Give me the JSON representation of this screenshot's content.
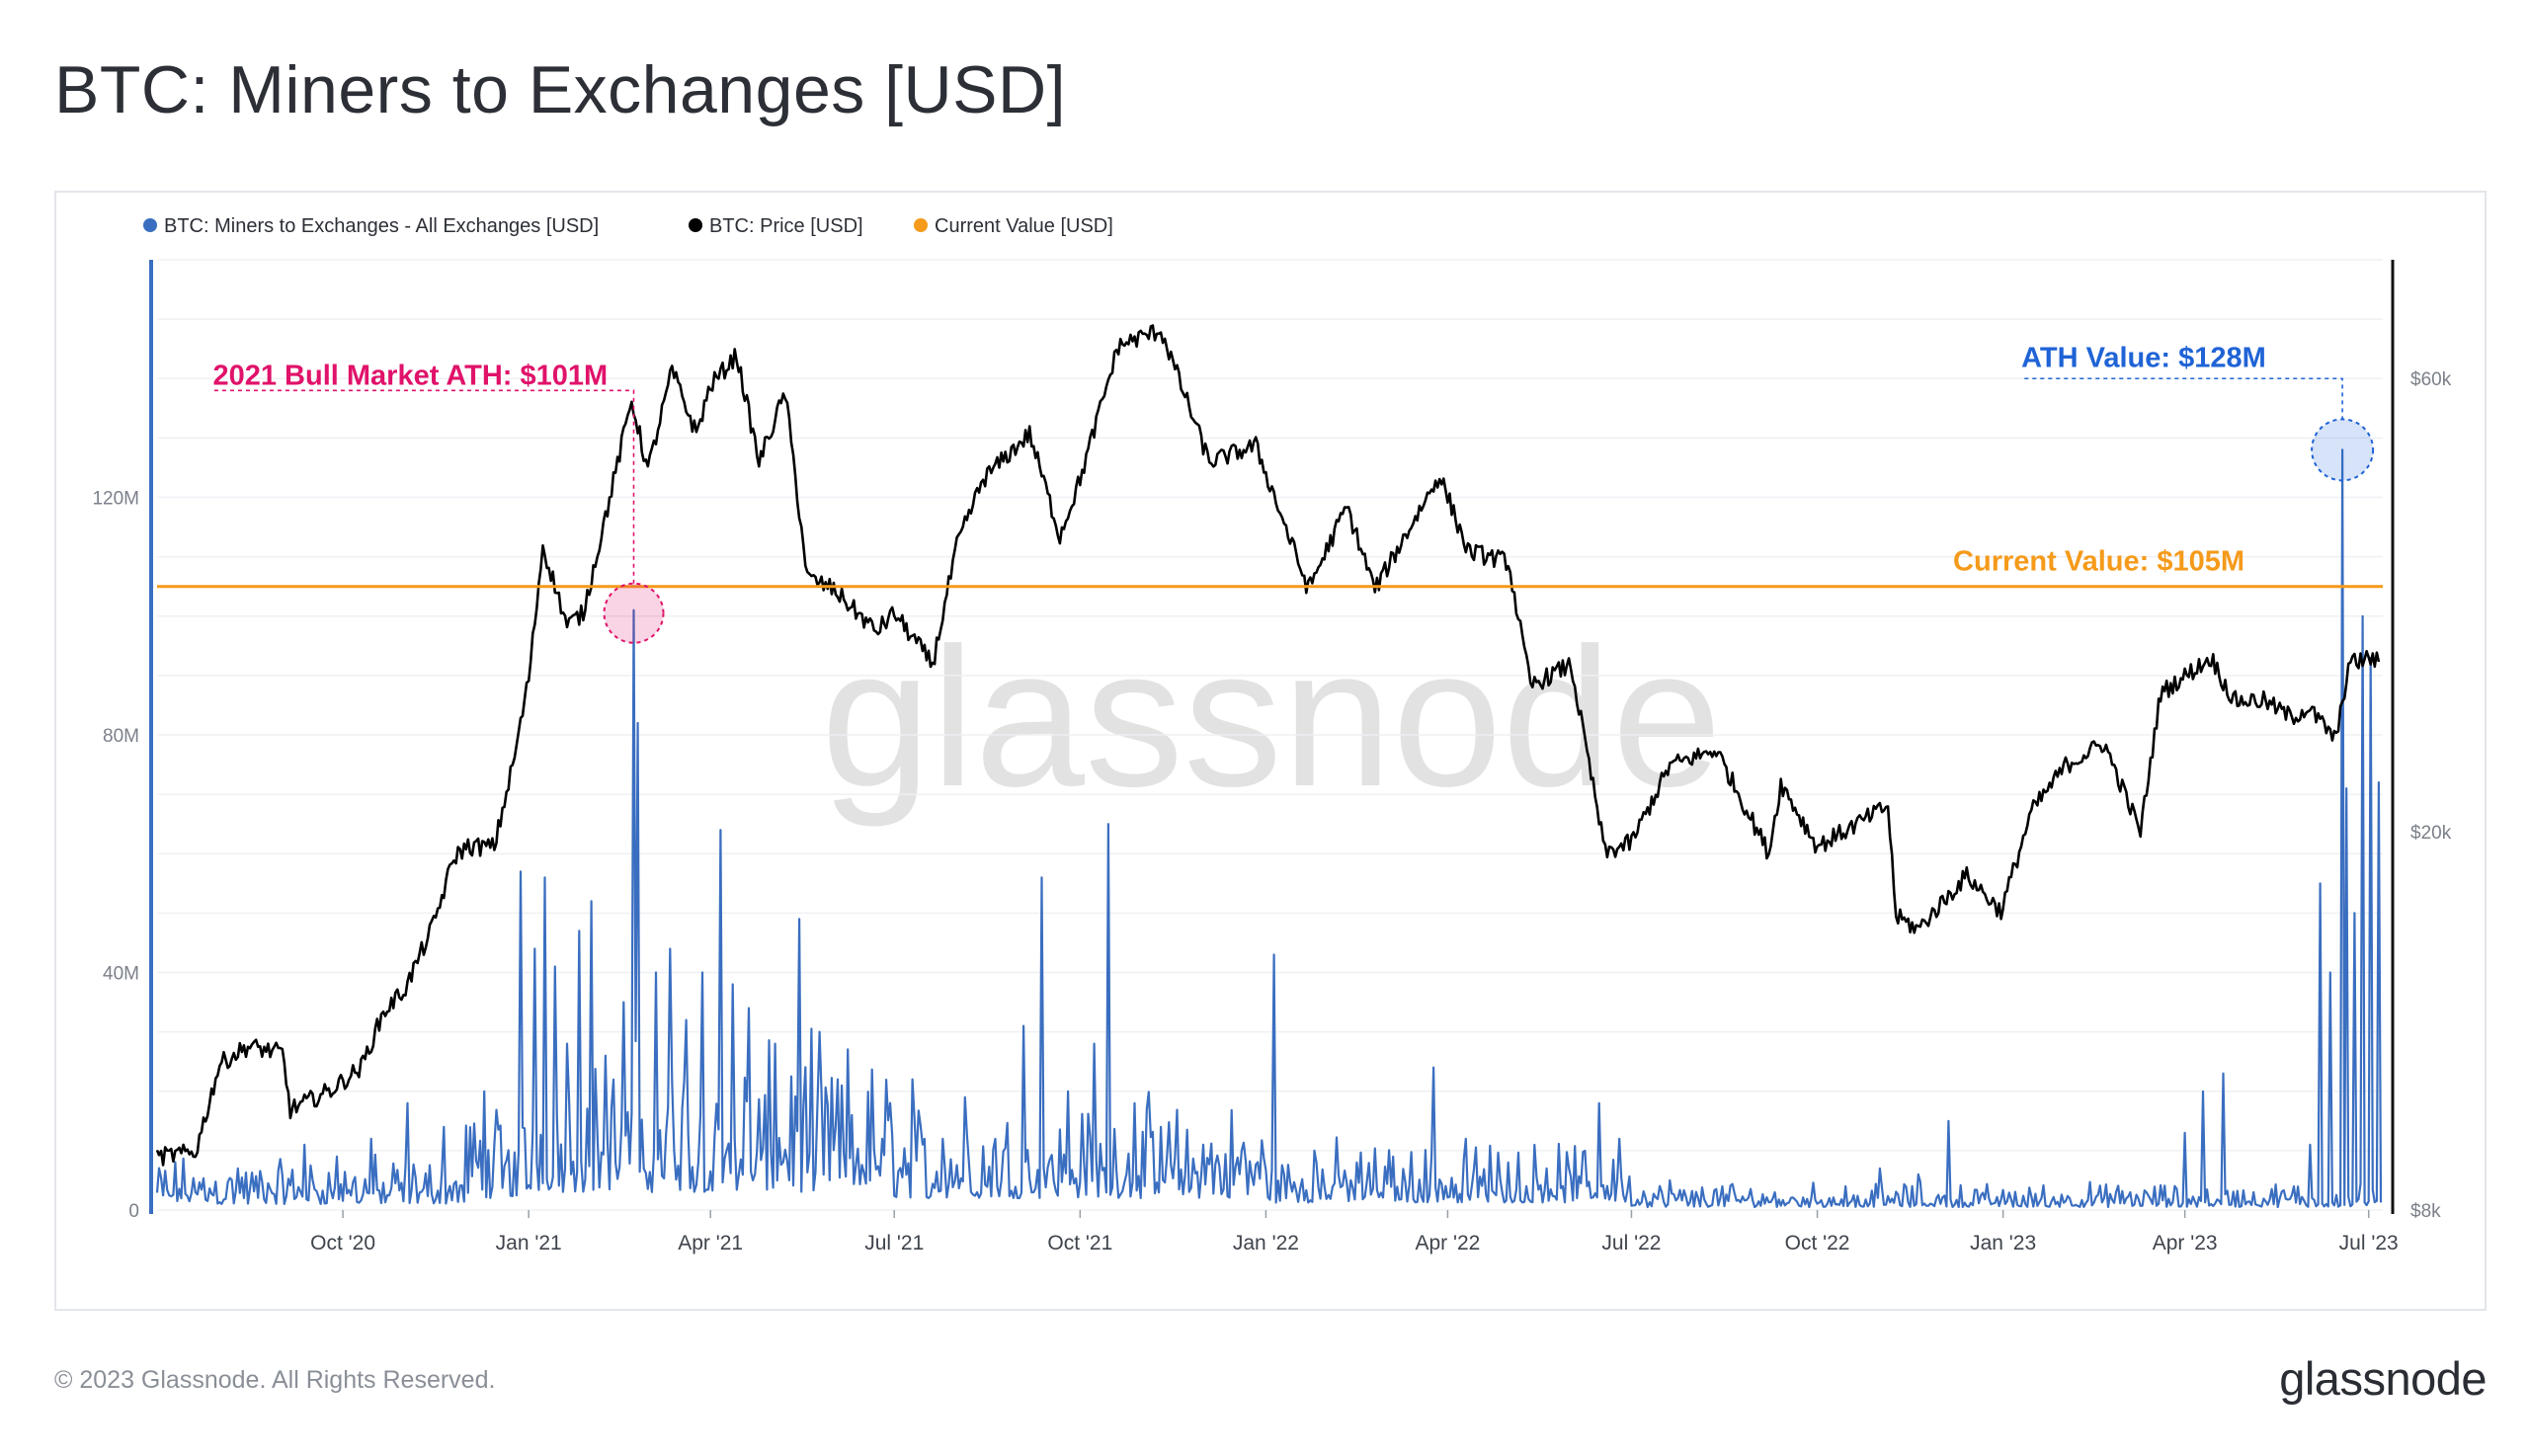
{
  "page": {
    "title": "BTC: Miners to Exchanges [USD]",
    "copyright": "© 2023 Glassnode. All Rights Reserved.",
    "logo_text": "glassnode",
    "watermark": "glassnode"
  },
  "colors": {
    "flow": "#3a6ec0",
    "price": "#000000",
    "current": "#f59a1a",
    "bull_annotation": "#e0126a",
    "ath_annotation": "#1f63d6"
  },
  "chart_data": {
    "type": "line",
    "title": "BTC: Miners to Exchanges [USD]",
    "legend_position": "top-left",
    "grid": true,
    "legend": [
      {
        "label": "BTC: Miners to Exchanges - All Exchanges [USD]",
        "color": "#3a6ec0"
      },
      {
        "label": "BTC: Price [USD]",
        "color": "#000000"
      },
      {
        "label": "Current Value [USD]",
        "color": "#f59a1a"
      }
    ],
    "x_axis": {
      "range": [
        "2020-07-01",
        "2023-07-08"
      ],
      "ticks": [
        {
          "date": "2020-10-01",
          "label": "Oct '20"
        },
        {
          "date": "2021-01-01",
          "label": "Jan '21"
        },
        {
          "date": "2021-04-01",
          "label": "Apr '21"
        },
        {
          "date": "2021-07-01",
          "label": "Jul '21"
        },
        {
          "date": "2021-10-01",
          "label": "Oct '21"
        },
        {
          "date": "2022-01-01",
          "label": "Jan '22"
        },
        {
          "date": "2022-04-01",
          "label": "Apr '22"
        },
        {
          "date": "2022-07-01",
          "label": "Jul '22"
        },
        {
          "date": "2022-10-01",
          "label": "Oct '22"
        },
        {
          "date": "2023-01-01",
          "label": "Jan '23"
        },
        {
          "date": "2023-04-01",
          "label": "Apr '23"
        },
        {
          "date": "2023-07-01",
          "label": "Jul '23"
        }
      ]
    },
    "y_left": {
      "range": [
        0,
        160000000
      ],
      "ticks": [
        {
          "value": 0,
          "label": "0"
        },
        {
          "value": 40000000,
          "label": "40M"
        },
        {
          "value": 80000000,
          "label": "80M"
        },
        {
          "value": 120000000,
          "label": "120M"
        }
      ]
    },
    "y_right": {
      "scale": "log",
      "range": [
        8000,
        80000
      ],
      "ticks": [
        {
          "value": 8000,
          "label": "$8k"
        },
        {
          "value": 20000,
          "label": "$20k"
        },
        {
          "value": 60000,
          "label": "$60k"
        }
      ]
    },
    "current_value": 105000000,
    "series": [
      {
        "name": "BTC: Price [USD]",
        "axis": "right",
        "points": [
          [
            "2020-07-01",
            9100
          ],
          [
            "2020-07-20",
            9200
          ],
          [
            "2020-08-01",
            11400
          ],
          [
            "2020-08-15",
            11900
          ],
          [
            "2020-09-01",
            11700
          ],
          [
            "2020-09-05",
            10200
          ],
          [
            "2020-09-25",
            10700
          ],
          [
            "2020-10-10",
            11300
          ],
          [
            "2020-10-21",
            12900
          ],
          [
            "2020-11-01",
            13700
          ],
          [
            "2020-11-15",
            16000
          ],
          [
            "2020-11-25",
            18800
          ],
          [
            "2020-12-01",
            19300
          ],
          [
            "2020-12-15",
            19300
          ],
          [
            "2020-12-25",
            24000
          ],
          [
            "2021-01-01",
            29000
          ],
          [
            "2021-01-08",
            40000
          ],
          [
            "2021-01-20",
            33000
          ],
          [
            "2021-01-28",
            34000
          ],
          [
            "2021-02-10",
            44800
          ],
          [
            "2021-02-21",
            57000
          ],
          [
            "2021-03-01",
            48000
          ],
          [
            "2021-03-13",
            61200
          ],
          [
            "2021-03-25",
            52500
          ],
          [
            "2021-04-01",
            59000
          ],
          [
            "2021-04-14",
            63500
          ],
          [
            "2021-04-25",
            49000
          ],
          [
            "2021-05-08",
            58000
          ],
          [
            "2021-05-19",
            37000
          ],
          [
            "2021-06-01",
            36000
          ],
          [
            "2021-06-22",
            32500
          ],
          [
            "2021-07-01",
            34000
          ],
          [
            "2021-07-20",
            30000
          ],
          [
            "2021-08-01",
            40000
          ],
          [
            "2021-08-14",
            47000
          ],
          [
            "2021-09-06",
            52500
          ],
          [
            "2021-09-21",
            41000
          ],
          [
            "2021-10-01",
            47000
          ],
          [
            "2021-10-20",
            65000
          ],
          [
            "2021-11-10",
            67500
          ],
          [
            "2021-12-04",
            49000
          ],
          [
            "2021-12-27",
            51000
          ],
          [
            "2022-01-22",
            36000
          ],
          [
            "2022-02-10",
            44000
          ],
          [
            "2022-02-24",
            36000
          ],
          [
            "2022-03-28",
            47500
          ],
          [
            "2022-04-11",
            39500
          ],
          [
            "2022-05-01",
            38500
          ],
          [
            "2022-05-12",
            28500
          ],
          [
            "2022-06-01",
            30000
          ],
          [
            "2022-06-18",
            19000
          ],
          [
            "2022-07-01",
            19500
          ],
          [
            "2022-07-20",
            23500
          ],
          [
            "2022-08-12",
            24400
          ],
          [
            "2022-09-07",
            19000
          ],
          [
            "2022-09-13",
            22500
          ],
          [
            "2022-10-01",
            19300
          ],
          [
            "2022-10-26",
            20700
          ],
          [
            "2022-11-05",
            21300
          ],
          [
            "2022-11-09",
            16300
          ],
          [
            "2022-11-20",
            15800
          ],
          [
            "2022-12-14",
            18000
          ],
          [
            "2022-12-31",
            16500
          ],
          [
            "2023-01-15",
            21000
          ],
          [
            "2023-02-01",
            23500
          ],
          [
            "2023-02-20",
            24800
          ],
          [
            "2023-03-10",
            20000
          ],
          [
            "2023-03-20",
            28000
          ],
          [
            "2023-04-14",
            30500
          ],
          [
            "2023-04-25",
            27500
          ],
          [
            "2023-05-10",
            27500
          ],
          [
            "2023-05-24",
            26400
          ],
          [
            "2023-06-01",
            27000
          ],
          [
            "2023-06-15",
            25000
          ],
          [
            "2023-06-21",
            30000
          ],
          [
            "2023-07-01",
            30500
          ],
          [
            "2023-07-06",
            30200
          ]
        ]
      },
      {
        "name": "BTC: Miners to Exchanges - All Exchanges [USD]",
        "axis": "left",
        "spikes": [
          [
            "2020-07-20",
            3000000
          ],
          [
            "2020-08-10",
            7000000
          ],
          [
            "2020-09-12",
            11000000
          ],
          [
            "2020-09-28",
            9000000
          ],
          [
            "2020-10-15",
            12000000
          ],
          [
            "2020-11-02",
            18000000
          ],
          [
            "2020-11-20",
            14000000
          ],
          [
            "2020-12-10",
            20000000
          ],
          [
            "2020-12-28",
            57000000
          ],
          [
            "2021-01-04",
            44000000
          ],
          [
            "2021-01-09",
            56000000
          ],
          [
            "2021-01-14",
            41000000
          ],
          [
            "2021-01-20",
            28000000
          ],
          [
            "2021-01-26",
            47000000
          ],
          [
            "2021-02-01",
            52000000
          ],
          [
            "2021-02-08",
            26000000
          ],
          [
            "2021-02-17",
            35000000
          ],
          [
            "2021-02-22",
            101000000
          ],
          [
            "2021-02-24",
            82000000
          ],
          [
            "2021-03-05",
            40000000
          ],
          [
            "2021-03-12",
            44000000
          ],
          [
            "2021-03-20",
            32000000
          ],
          [
            "2021-03-28",
            40000000
          ],
          [
            "2021-04-06",
            64000000
          ],
          [
            "2021-04-12",
            38000000
          ],
          [
            "2021-04-20",
            34000000
          ],
          [
            "2021-05-03",
            28000000
          ],
          [
            "2021-05-15",
            49000000
          ],
          [
            "2021-05-25",
            30000000
          ],
          [
            "2021-06-10",
            16000000
          ],
          [
            "2021-06-25",
            12000000
          ],
          [
            "2021-07-10",
            22000000
          ],
          [
            "2021-07-25",
            12000000
          ],
          [
            "2021-08-05",
            19000000
          ],
          [
            "2021-08-20",
            12000000
          ],
          [
            "2021-09-03",
            31000000
          ],
          [
            "2021-09-12",
            56000000
          ],
          [
            "2021-09-25",
            20000000
          ],
          [
            "2021-10-08",
            28000000
          ],
          [
            "2021-10-15",
            65000000
          ],
          [
            "2021-10-28",
            18000000
          ],
          [
            "2021-11-10",
            14000000
          ],
          [
            "2021-12-01",
            11000000
          ],
          [
            "2021-12-20",
            10000000
          ],
          [
            "2022-01-05",
            43000000
          ],
          [
            "2022-01-25",
            10000000
          ],
          [
            "2022-02-15",
            8000000
          ],
          [
            "2022-03-05",
            9000000
          ],
          [
            "2022-03-25",
            24000000
          ],
          [
            "2022-04-10",
            12000000
          ],
          [
            "2022-05-01",
            8000000
          ],
          [
            "2022-05-20",
            7000000
          ],
          [
            "2022-06-15",
            18000000
          ],
          [
            "2022-06-25",
            12000000
          ],
          [
            "2022-07-20",
            5000000
          ],
          [
            "2022-08-15",
            4000000
          ],
          [
            "2022-09-10",
            3000000
          ],
          [
            "2022-10-15",
            4000000
          ],
          [
            "2022-11-01",
            7000000
          ],
          [
            "2022-11-20",
            6000000
          ],
          [
            "2022-12-05",
            15000000
          ],
          [
            "2022-12-25",
            2000000
          ],
          [
            "2023-01-25",
            1500000
          ],
          [
            "2023-02-20",
            2000000
          ],
          [
            "2023-03-05",
            3000000
          ],
          [
            "2023-04-01",
            13000000
          ],
          [
            "2023-04-10",
            20000000
          ],
          [
            "2023-04-20",
            23000000
          ],
          [
            "2023-05-05",
            3000000
          ],
          [
            "2023-05-25",
            4000000
          ],
          [
            "2023-06-02",
            11000000
          ],
          [
            "2023-06-07",
            55000000
          ],
          [
            "2023-06-12",
            40000000
          ],
          [
            "2023-06-18",
            128000000
          ],
          [
            "2023-06-20",
            71000000
          ],
          [
            "2023-06-24",
            50000000
          ],
          [
            "2023-06-28",
            100000000
          ],
          [
            "2023-07-02",
            93000000
          ],
          [
            "2023-07-06",
            72000000
          ]
        ]
      }
    ],
    "annotations": [
      {
        "text": "2021 Bull Market ATH: $101M",
        "date": "2021-02-22",
        "value": 101000000,
        "color": "#e0126a"
      },
      {
        "text": "ATH Value: $128M",
        "date": "2023-06-18",
        "value": 128000000,
        "color": "#1f63d6"
      },
      {
        "text": "Current Value: $105M",
        "value": 105000000,
        "color": "#f59a1a"
      }
    ]
  }
}
